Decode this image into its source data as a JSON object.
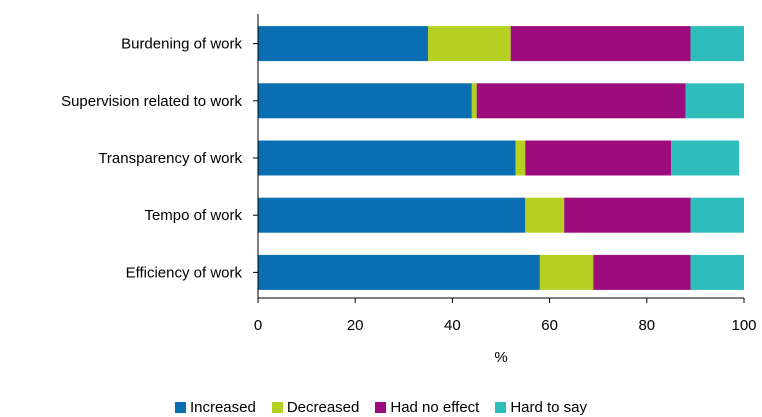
{
  "chart_data": {
    "type": "bar",
    "orientation": "horizontal",
    "stacked": true,
    "categories": [
      "Burdening of work",
      "Supervision related to work",
      "Transparency of work",
      "Tempo of work",
      "Efficiency of work"
    ],
    "series": [
      {
        "name": "Increased",
        "color": "#0a6fb2",
        "values": [
          35,
          44,
          53,
          55,
          58
        ]
      },
      {
        "name": "Decreased",
        "color": "#b5cf22",
        "values": [
          17,
          1,
          2,
          8,
          11
        ]
      },
      {
        "name": "Had no effect",
        "color": "#9d0c7d",
        "values": [
          37,
          43,
          30,
          26,
          20
        ]
      },
      {
        "name": "Hard to say",
        "color": "#2fbdbb",
        "values": [
          11,
          12,
          14,
          11,
          11
        ]
      }
    ],
    "xlabel": "%",
    "xlim": [
      0,
      100
    ],
    "xticks": [
      0,
      20,
      40,
      60,
      80,
      100
    ],
    "grid": false,
    "legend_position": "bottom"
  }
}
